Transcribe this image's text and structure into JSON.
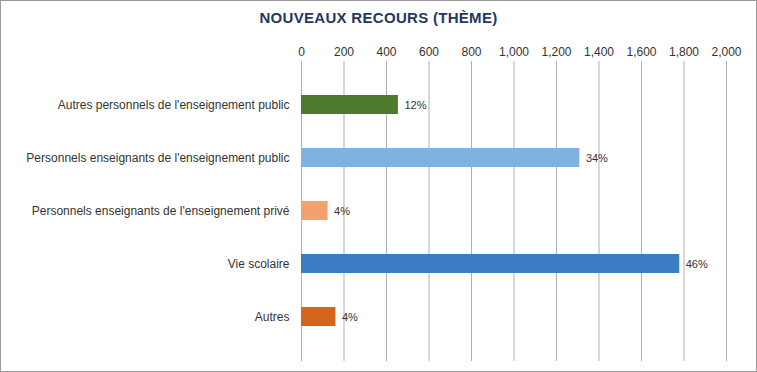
{
  "chart_data": {
    "type": "bar",
    "orientation": "horizontal",
    "title": "NOUVEAUX RECOURS (THÈME)",
    "categories": [
      "Autres personnels de l'enseignement public",
      "Personnels enseignants de l'enseignement public",
      "Personnels enseignants de l'enseignement privé",
      "Vie scolaire",
      "Autres"
    ],
    "values": [
      456,
      1310,
      125,
      1780,
      162
    ],
    "colors": [
      "#4f7a2c",
      "#7fb1e1",
      "#f3a16f",
      "#3a7dc5",
      "#d3651c"
    ],
    "annotations": [
      "12%",
      "34%",
      "4%",
      "46%",
      "4%"
    ],
    "xlim": [
      0,
      2000
    ],
    "xticks": [
      0,
      200,
      400,
      600,
      800,
      1000,
      1200,
      1400,
      1600,
      1800,
      2000
    ],
    "grid": true,
    "data_labels": false
  }
}
